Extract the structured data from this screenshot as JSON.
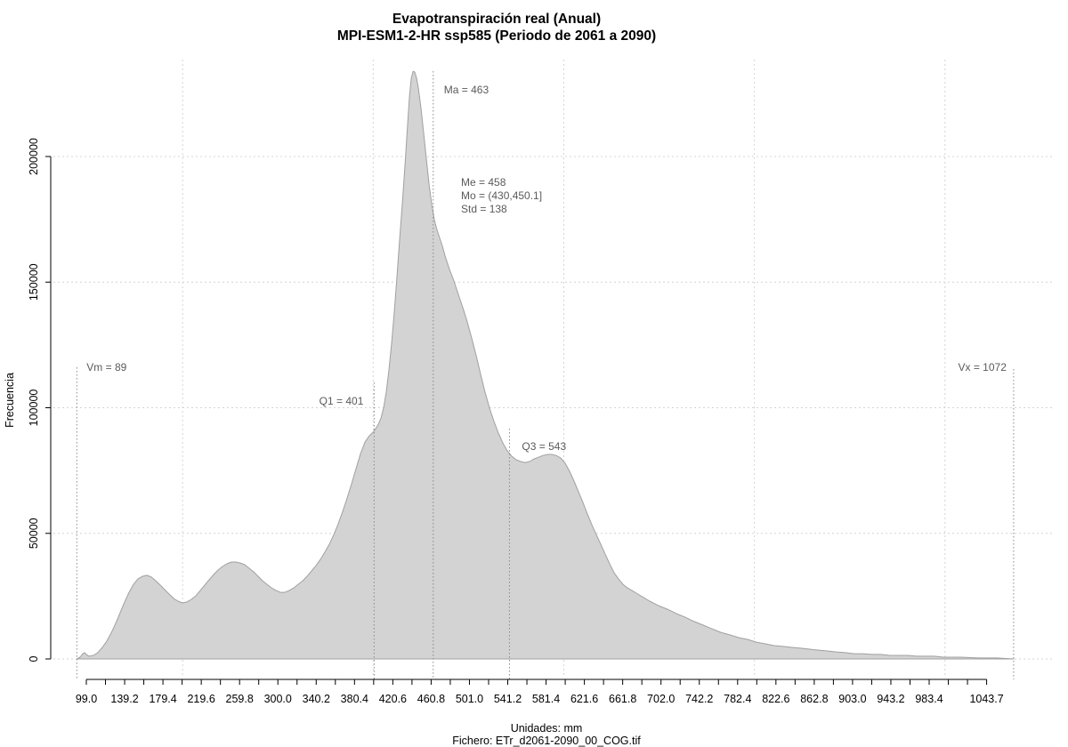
{
  "header": {
    "title_line1": "Evapotranspiración real (Anual)",
    "title_line2": "MPI-ESM1-2-HR ssp585 (Periodo de 2061 a 2090)"
  },
  "y_axis": {
    "label": "Frecuencia",
    "tick_labels": [
      "0",
      "50000",
      "100000",
      "150000",
      "200000"
    ],
    "tick_values": [
      0,
      50000,
      100000,
      150000,
      200000
    ]
  },
  "x_axis": {
    "tick_labels": [
      "99.0",
      "139.2",
      "179.4",
      "219.6",
      "259.8",
      "300.0",
      "340.2",
      "380.4",
      "420.6",
      "460.8",
      "501.0",
      "541.2",
      "581.4",
      "621.6",
      "661.8",
      "702.0",
      "742.2",
      "782.4",
      "822.6",
      "862.8",
      "903.0",
      "943.2",
      "983.4",
      "1043.7"
    ],
    "tick_label_values": [
      99.0,
      139.2,
      179.4,
      219.6,
      259.8,
      300.0,
      340.2,
      380.4,
      420.6,
      460.8,
      501.0,
      541.2,
      581.4,
      621.6,
      661.8,
      702.0,
      742.2,
      782.4,
      822.6,
      862.8,
      903.0,
      943.2,
      983.4,
      1043.7
    ],
    "minor_tick_start": 99.0,
    "minor_tick_step": 20.1,
    "minor_tick_count": 48
  },
  "annotations": {
    "vm": {
      "label": "Vm = 89",
      "x": 89
    },
    "q1": {
      "label": "Q1 = 401",
      "x": 401
    },
    "ma": {
      "label": "Ma = 463",
      "x": 463
    },
    "q3": {
      "label": "Q3 = 543",
      "x": 543
    },
    "vx": {
      "label": "Vx = 1072",
      "x": 1072
    },
    "stats": {
      "line1": "Me = 458",
      "line2": "Mo = (430,450.1]",
      "line3": "Std = 138"
    }
  },
  "footer": {
    "line1": "Unidades: mm",
    "line2": "Fichero: ETr_d2061-2090_00_COG.tif"
  },
  "colors": {
    "fill": "#d3d3d3",
    "curve_stroke": "#a0a0a0",
    "grid": "#d4d4d4",
    "annotation_line": "#8a8a8a",
    "annotation_text": "#5a5a5a",
    "axis": "#000000"
  },
  "chart_data": {
    "type": "area",
    "title": "Evapotranspiración real (Anual) — MPI-ESM1-2-HR ssp585 (Periodo de 2061 a 2090)",
    "xlabel": "Unidades: mm",
    "ylabel": "Frecuencia",
    "xlim": [
      60,
      1083
    ],
    "ylim": [
      0,
      234000
    ],
    "grid": true,
    "grid_x": [
      200,
      400,
      600,
      800,
      1000
    ],
    "grid_y": [
      0,
      50000,
      100000,
      150000,
      200000
    ],
    "stats": {
      "min": 89,
      "q1": 401,
      "mean": 463,
      "median": 458,
      "mode_bin": "(430,450.1]",
      "std": 138,
      "q3": 543,
      "max": 1072
    },
    "points": [
      [
        89,
        0
      ],
      [
        92.5,
        700
      ],
      [
        95.3,
        2100
      ],
      [
        97,
        2500
      ],
      [
        99,
        1800
      ],
      [
        101.8,
        1100
      ],
      [
        106.5,
        1400
      ],
      [
        111,
        2500
      ],
      [
        115.8,
        4600
      ],
      [
        120.5,
        7100
      ],
      [
        125.1,
        10300
      ],
      [
        129.8,
        14200
      ],
      [
        134.5,
        18400
      ],
      [
        139.2,
        22700
      ],
      [
        143.8,
        26500
      ],
      [
        148.5,
        29700
      ],
      [
        153.2,
        31900
      ],
      [
        157.8,
        32900
      ],
      [
        162.5,
        33300
      ],
      [
        167.2,
        32600
      ],
      [
        171.9,
        31100
      ],
      [
        176.5,
        29400
      ],
      [
        181.2,
        27600
      ],
      [
        185.9,
        25800
      ],
      [
        190.5,
        24100
      ],
      [
        195.2,
        23000
      ],
      [
        199.9,
        22300
      ],
      [
        204.5,
        22700
      ],
      [
        209.2,
        23700
      ],
      [
        213.9,
        25100
      ],
      [
        218.6,
        27300
      ],
      [
        223.2,
        29400
      ],
      [
        227.9,
        31500
      ],
      [
        232.6,
        33600
      ],
      [
        237.2,
        35400
      ],
      [
        241.9,
        36800
      ],
      [
        246.6,
        37900
      ],
      [
        251.2,
        38600
      ],
      [
        255.9,
        38600
      ],
      [
        260.6,
        38200
      ],
      [
        265.3,
        37500
      ],
      [
        269.9,
        36100
      ],
      [
        274.6,
        34700
      ],
      [
        279.3,
        32900
      ],
      [
        283.9,
        31100
      ],
      [
        288.6,
        29700
      ],
      [
        293.3,
        28300
      ],
      [
        297.9,
        27300
      ],
      [
        302.6,
        26500
      ],
      [
        307.3,
        26500
      ],
      [
        312,
        27300
      ],
      [
        316.6,
        28300
      ],
      [
        321.3,
        29700
      ],
      [
        326,
        31100
      ],
      [
        330.6,
        32900
      ],
      [
        335.3,
        35000
      ],
      [
        340,
        37200
      ],
      [
        344.6,
        39600
      ],
      [
        349.3,
        42500
      ],
      [
        354,
        45700
      ],
      [
        358.7,
        49500
      ],
      [
        363.3,
        53800
      ],
      [
        368,
        58700
      ],
      [
        372.7,
        64100
      ],
      [
        377.3,
        69700
      ],
      [
        382,
        75700
      ],
      [
        386.7,
        81700
      ],
      [
        391.3,
        86300
      ],
      [
        396,
        88800
      ],
      [
        400.7,
        90600
      ],
      [
        405.4,
        93400
      ],
      [
        408.2,
        95900
      ],
      [
        411,
        100100
      ],
      [
        413.8,
        106500
      ],
      [
        416.6,
        115400
      ],
      [
        419.4,
        126000
      ],
      [
        422.2,
        138400
      ],
      [
        425,
        152500
      ],
      [
        427.8,
        167400
      ],
      [
        430.6,
        181500
      ],
      [
        433.4,
        196800
      ],
      [
        436.2,
        213400
      ],
      [
        438.1,
        224000
      ],
      [
        440,
        231100
      ],
      [
        441.8,
        233900
      ],
      [
        443.7,
        233600
      ],
      [
        445.6,
        231100
      ],
      [
        447.4,
        227200
      ],
      [
        450.2,
        219000
      ],
      [
        453,
        209100
      ],
      [
        455.9,
        198500
      ],
      [
        458.7,
        188600
      ],
      [
        461.5,
        180800
      ],
      [
        464.3,
        174500
      ],
      [
        467.1,
        170600
      ],
      [
        469.9,
        167400
      ],
      [
        472.7,
        164200
      ],
      [
        475.5,
        160300
      ],
      [
        480.1,
        155000
      ],
      [
        484.8,
        150400
      ],
      [
        489.4,
        145100
      ],
      [
        494.1,
        139800
      ],
      [
        498.8,
        134100
      ],
      [
        503.4,
        127700
      ],
      [
        508.1,
        120700
      ],
      [
        512.8,
        113200
      ],
      [
        517.4,
        106200
      ],
      [
        522.1,
        99800
      ],
      [
        526.8,
        94500
      ],
      [
        531.4,
        89900
      ],
      [
        536.1,
        86000
      ],
      [
        540.8,
        82800
      ],
      [
        545.4,
        80700
      ],
      [
        550.1,
        79300
      ],
      [
        554.8,
        78600
      ],
      [
        559.4,
        78200
      ],
      [
        564.1,
        78600
      ],
      [
        568.8,
        79600
      ],
      [
        573.4,
        80300
      ],
      [
        578.1,
        81000
      ],
      [
        582.8,
        81400
      ],
      [
        587.4,
        81400
      ],
      [
        592.1,
        81000
      ],
      [
        596.8,
        80000
      ],
      [
        601.4,
        77900
      ],
      [
        606.1,
        74700
      ],
      [
        610.8,
        70800
      ],
      [
        615.4,
        66500
      ],
      [
        620.1,
        62300
      ],
      [
        624.8,
        57700
      ],
      [
        629.4,
        53400
      ],
      [
        634.1,
        49500
      ],
      [
        638.8,
        45700
      ],
      [
        643.4,
        41800
      ],
      [
        648.1,
        37900
      ],
      [
        652.8,
        34300
      ],
      [
        657.4,
        31900
      ],
      [
        662.1,
        29700
      ],
      [
        666.8,
        28300
      ],
      [
        671.4,
        27300
      ],
      [
        676.1,
        26200
      ],
      [
        680.8,
        25100
      ],
      [
        685.4,
        24100
      ],
      [
        690.1,
        23000
      ],
      [
        699.4,
        21200
      ],
      [
        708.8,
        19800
      ],
      [
        718.1,
        18100
      ],
      [
        727.4,
        16600
      ],
      [
        736.8,
        14900
      ],
      [
        746.1,
        13500
      ],
      [
        755.4,
        12000
      ],
      [
        764.8,
        10600
      ],
      [
        774.1,
        9600
      ],
      [
        783.5,
        8500
      ],
      [
        792.8,
        7800
      ],
      [
        802.1,
        6700
      ],
      [
        811.5,
        6000
      ],
      [
        820.8,
        5300
      ],
      [
        830.1,
        5000
      ],
      [
        839.5,
        4600
      ],
      [
        848.8,
        4300
      ],
      [
        858.1,
        3900
      ],
      [
        867.5,
        3500
      ],
      [
        876.8,
        3200
      ],
      [
        886.2,
        2800
      ],
      [
        895.5,
        2500
      ],
      [
        904.8,
        2100
      ],
      [
        914.2,
        2100
      ],
      [
        923.5,
        1800
      ],
      [
        932.8,
        1800
      ],
      [
        942.2,
        1400
      ],
      [
        951.5,
        1400
      ],
      [
        960.9,
        1400
      ],
      [
        970.2,
        1100
      ],
      [
        979.5,
        1100
      ],
      [
        988.9,
        1100
      ],
      [
        998.2,
        700
      ],
      [
        1016.9,
        700
      ],
      [
        1035.6,
        400
      ],
      [
        1054.2,
        400
      ],
      [
        1072,
        0
      ]
    ]
  }
}
